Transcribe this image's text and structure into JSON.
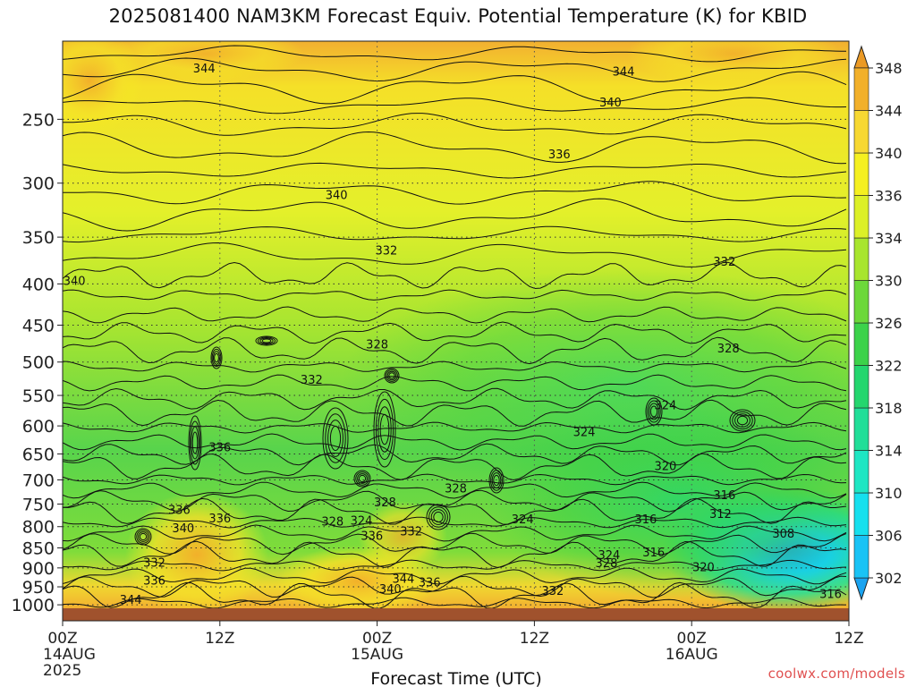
{
  "chart_data": {
    "type": "heatmap",
    "title": "2025081400 NAM3KM Forecast Equiv. Potential Temperature (K) for KBID",
    "xlabel": "Forecast Time (UTC)",
    "ylabel": "",
    "credit": "coolwx.com/models",
    "x_ticks": [
      {
        "hour": 0,
        "label": "00Z",
        "sub": [
          "14AUG",
          "2025"
        ]
      },
      {
        "hour": 12,
        "label": "12Z",
        "sub": []
      },
      {
        "hour": 24,
        "label": "00Z",
        "sub": [
          "15AUG"
        ]
      },
      {
        "hour": 36,
        "label": "12Z",
        "sub": []
      },
      {
        "hour": 48,
        "label": "00Z",
        "sub": [
          "16AUG"
        ]
      },
      {
        "hour": 60,
        "label": "12Z",
        "sub": []
      }
    ],
    "xlim": [
      0,
      60
    ],
    "y_ticks": [
      250,
      300,
      350,
      400,
      450,
      500,
      550,
      600,
      650,
      700,
      750,
      800,
      850,
      900,
      950,
      1000
    ],
    "ylim": [
      200,
      1010
    ],
    "y_scale": "log",
    "y_inverted": true,
    "colorbar": {
      "levels": [
        302,
        306,
        310,
        314,
        318,
        322,
        326,
        330,
        334,
        336,
        340,
        344,
        348
      ],
      "colors": [
        "#1aa3f0",
        "#19c3f5",
        "#16e0ee",
        "#1ee6c3",
        "#20de98",
        "#24d66e",
        "#3cd24a",
        "#6cd83a",
        "#a8e52e",
        "#dcf028",
        "#f5f020",
        "#f7d832",
        "#f2b02a",
        "#eb9a25"
      ],
      "extend": "both"
    },
    "contour_labels": [
      {
        "hour": 10.8,
        "p": 216,
        "v": 344
      },
      {
        "hour": 42.8,
        "p": 218,
        "v": 344
      },
      {
        "hour": 41.8,
        "p": 238,
        "v": 340
      },
      {
        "hour": 37.9,
        "p": 276,
        "v": 336
      },
      {
        "hour": 20.9,
        "p": 310,
        "v": 340
      },
      {
        "hour": 24.7,
        "p": 363,
        "v": 332
      },
      {
        "hour": 50.5,
        "p": 375,
        "v": 332
      },
      {
        "hour": 0.9,
        "p": 396,
        "v": 340
      },
      {
        "hour": 24.0,
        "p": 475,
        "v": 328
      },
      {
        "hour": 50.8,
        "p": 480,
        "v": 328
      },
      {
        "hour": 19.0,
        "p": 525,
        "v": 332
      },
      {
        "hour": 46.0,
        "p": 565,
        "v": 324
      },
      {
        "hour": 39.8,
        "p": 610,
        "v": 324
      },
      {
        "hour": 12.0,
        "p": 637,
        "v": 336
      },
      {
        "hour": 46.0,
        "p": 672,
        "v": 320
      },
      {
        "hour": 50.5,
        "p": 730,
        "v": 316
      },
      {
        "hour": 24.6,
        "p": 745,
        "v": 328
      },
      {
        "hour": 30.0,
        "p": 716,
        "v": 328
      },
      {
        "hour": 50.2,
        "p": 770,
        "v": 312
      },
      {
        "hour": 8.9,
        "p": 762,
        "v": 336
      },
      {
        "hour": 12.0,
        "p": 780,
        "v": 336
      },
      {
        "hour": 44.5,
        "p": 782,
        "v": 316
      },
      {
        "hour": 35.1,
        "p": 782,
        "v": 324
      },
      {
        "hour": 20.6,
        "p": 787,
        "v": 328
      },
      {
        "hour": 22.8,
        "p": 785,
        "v": 324
      },
      {
        "hour": 9.2,
        "p": 803,
        "v": 340
      },
      {
        "hour": 23.6,
        "p": 820,
        "v": 336
      },
      {
        "hour": 26.6,
        "p": 810,
        "v": 332
      },
      {
        "hour": 55.0,
        "p": 815,
        "v": 308
      },
      {
        "hour": 41.7,
        "p": 867,
        "v": 324
      },
      {
        "hour": 41.5,
        "p": 887,
        "v": 328
      },
      {
        "hour": 45.1,
        "p": 860,
        "v": 316
      },
      {
        "hour": 7.0,
        "p": 886,
        "v": 332
      },
      {
        "hour": 48.9,
        "p": 897,
        "v": 320
      },
      {
        "hour": 7.0,
        "p": 932,
        "v": 336
      },
      {
        "hour": 26.0,
        "p": 927,
        "v": 344
      },
      {
        "hour": 28.0,
        "p": 937,
        "v": 336
      },
      {
        "hour": 25.0,
        "p": 955,
        "v": 340
      },
      {
        "hour": 37.4,
        "p": 960,
        "v": 332
      },
      {
        "hour": 58.6,
        "p": 968,
        "v": 316
      },
      {
        "hour": 5.2,
        "p": 985,
        "v": 344
      }
    ]
  }
}
